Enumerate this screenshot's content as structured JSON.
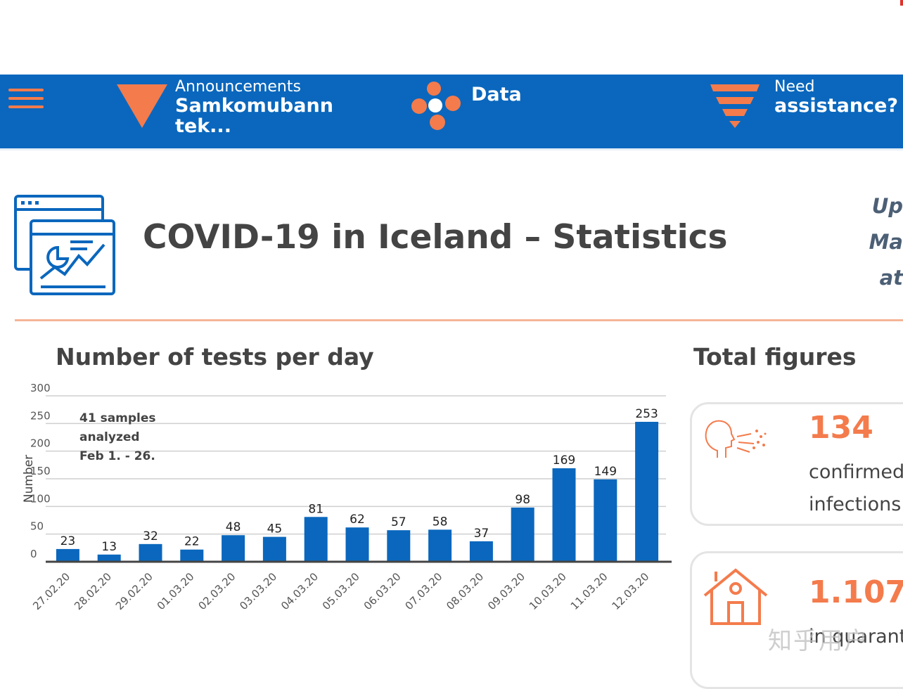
{
  "nav": {
    "announcements": {
      "small": "Announcements",
      "big": "Samkomubann tek..."
    },
    "data": {
      "big": "Data"
    },
    "assistance": {
      "small": "Need",
      "big": "assistance?"
    }
  },
  "header": {
    "title": "COVID-19 in Iceland – Statistics",
    "updated_lines": [
      "Up",
      "Ma",
      "at"
    ]
  },
  "chart_section": {
    "title": "Number of tests per day"
  },
  "chart_data": {
    "type": "bar",
    "categories": [
      "27.02.20",
      "28.02.20",
      "29.02.20",
      "01.03.20",
      "02.03.20",
      "03.03.20",
      "04.03.20",
      "05.03.20",
      "06.03.20",
      "07.03.20",
      "08.03.20",
      "09.03.20",
      "10.03.20",
      "11.03.20",
      "12.03.20"
    ],
    "values": [
      23,
      13,
      32,
      22,
      48,
      45,
      81,
      62,
      57,
      58,
      37,
      98,
      169,
      149,
      253
    ],
    "ylabel": "Number",
    "yticks": [
      0,
      50,
      100,
      150,
      200,
      250,
      300
    ],
    "ylim": [
      0,
      300
    ],
    "annotation": [
      "41 samples",
      "analyzed",
      "Feb 1. - 26."
    ],
    "bar_color": "#0a67bd",
    "grid": true
  },
  "totals": {
    "title": "Total figures",
    "cards": [
      {
        "number": "134",
        "label_lines": [
          "confirmed",
          "infections"
        ]
      },
      {
        "number": "1.107",
        "label_lines": [
          "in quarant"
        ]
      }
    ]
  },
  "watermark": "知乎用户",
  "colors": {
    "brand_blue": "#0a67bd",
    "accent_orange": "#f47b4c"
  }
}
